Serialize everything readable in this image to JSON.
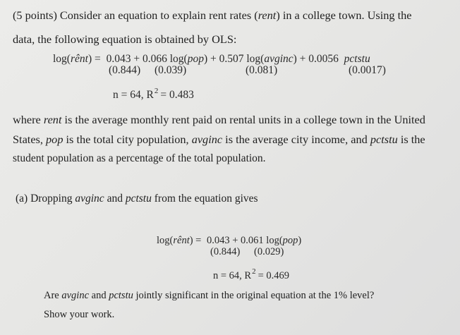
{
  "question": {
    "p1": {
      "a": "(5 points) Consider an equation to explain rent rates (",
      "rent": "rent",
      "b": ") in a college town. Using the"
    },
    "p2": "data, the following equation is obtained by OLS:",
    "eq1": {
      "lhs_a": "log(",
      "lhs_var": "rênt",
      "lhs_b": ") = ",
      "const": "0.043",
      "plus1": " + ",
      "c_pop": "0.066",
      "log_pop_a": " log(",
      "pop": "pop",
      "log_pop_b": ") + ",
      "c_avginc": "0.507",
      "log_avginc_a": " log(",
      "avginc": "avginc",
      "log_avginc_b": ") + ",
      "c_pctstu": "0.0056",
      "pctstu": "pctstu",
      "se_const": "(0.844)",
      "se_pop": "(0.039)",
      "se_avginc": "(0.081)",
      "se_pctstu": "(0.0017)",
      "stats_a": "n = 64, R",
      "stats_sup": "2",
      "stats_b": "= 0.483"
    },
    "def": {
      "l1a": "where ",
      "rent": "rent",
      "l1b": " is the average monthly rent paid on rental units in a college town in the United",
      "l2a": "States, ",
      "pop": "pop",
      "l2b": " is the total city population, ",
      "avginc": "avginc",
      "l2c": " is the average city income, and ",
      "pctstu": "pctstu",
      "l2d": " is the",
      "l3": "student population as a percentage of the total population."
    },
    "part_a": {
      "a": "(a) Dropping ",
      "avginc": "avginc",
      "b": " and ",
      "pctstu": "pctstu",
      "c": " from the equation gives"
    },
    "eq2": {
      "lhs_a": "log(",
      "lhs_var": "rênt",
      "lhs_b": ") = ",
      "const": "0.043",
      "plus1": " + ",
      "c_pop": "0.061",
      "log_pop_a": " log(",
      "pop": "pop",
      "log_pop_b": ")",
      "se_const": "(0.844)",
      "se_pop": "(0.029)",
      "stats_a": "n = 64, R",
      "stats_sup": "2",
      "stats_b": "= 0.469"
    },
    "ask": {
      "a": "Are ",
      "avginc": "avginc",
      "b": " and ",
      "pctstu": "pctstu",
      "c": " jointly significant in the original equation at the 1% level?",
      "l2": "Show your work."
    }
  }
}
